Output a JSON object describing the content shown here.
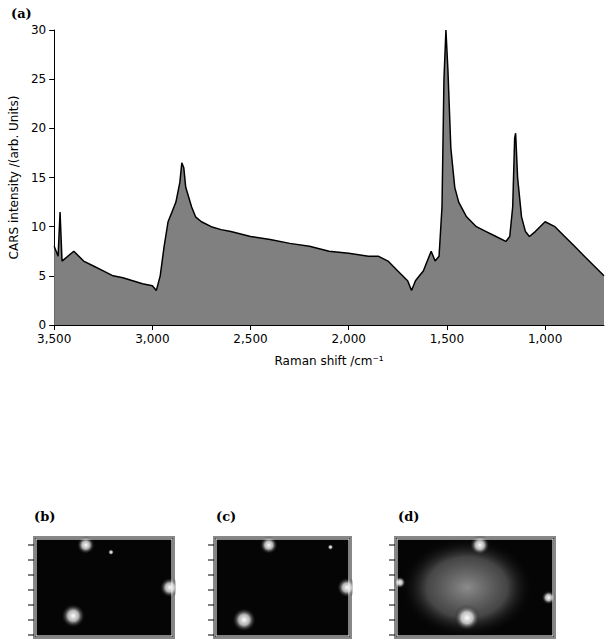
{
  "chart_data": {
    "type": "line",
    "title": "(a)",
    "x_label": "Raman shift /cm⁻¹",
    "y_label": "CARS intensity /(arb. Units)",
    "color": "#808080",
    "grid": false,
    "xlim": [
      3500,
      700
    ],
    "xticks": [
      3500,
      3000,
      2500,
      2000,
      1500,
      1000
    ],
    "ylim": [
      0,
      30
    ],
    "yticks": [
      0,
      5,
      10,
      15,
      20,
      25,
      30
    ],
    "x": [
      3500,
      3480,
      3470,
      3460,
      3400,
      3350,
      3300,
      3250,
      3200,
      3150,
      3100,
      3050,
      3000,
      2980,
      2960,
      2940,
      2920,
      2900,
      2880,
      2860,
      2850,
      2840,
      2830,
      2800,
      2780,
      2750,
      2700,
      2650,
      2600,
      2500,
      2400,
      2300,
      2200,
      2100,
      2000,
      1900,
      1850,
      1800,
      1750,
      1700,
      1680,
      1660,
      1640,
      1620,
      1600,
      1580,
      1560,
      1540,
      1525,
      1515,
      1505,
      1495,
      1480,
      1460,
      1440,
      1400,
      1350,
      1300,
      1250,
      1200,
      1180,
      1165,
      1155,
      1150,
      1140,
      1120,
      1100,
      1080,
      1050,
      1000,
      950,
      900,
      850,
      800,
      750,
      700
    ],
    "values": [
      8,
      7,
      11.5,
      6.5,
      7.5,
      6.5,
      6,
      5.5,
      5,
      4.8,
      4.5,
      4.2,
      4,
      3.5,
      5,
      8,
      10.5,
      11.5,
      12.5,
      14.5,
      16.5,
      16,
      14,
      12,
      11,
      10.5,
      10,
      9.7,
      9.5,
      9,
      8.7,
      8.3,
      8,
      7.5,
      7.3,
      7,
      7,
      6.5,
      5.5,
      4.5,
      3.5,
      4.5,
      5,
      5.5,
      6.5,
      7.5,
      6.5,
      7,
      12,
      25,
      30,
      26,
      18,
      14,
      12.5,
      11,
      10,
      9.5,
      9,
      8.5,
      9,
      12,
      19,
      19.5,
      15,
      11,
      9.5,
      9,
      9.5,
      10.5,
      10,
      9,
      8,
      7,
      6,
      5
    ]
  },
  "images": [
    {
      "label": "(b)"
    },
    {
      "label": "(c)"
    },
    {
      "label": "(d)"
    }
  ]
}
